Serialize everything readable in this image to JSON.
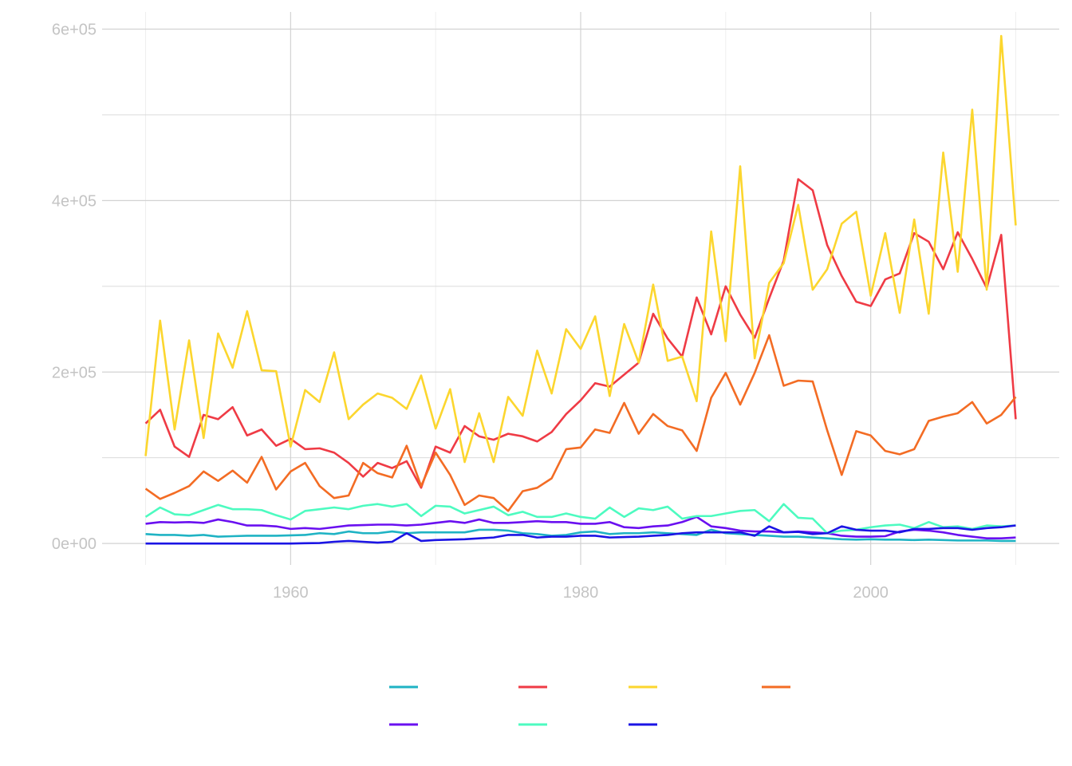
{
  "chart_data": {
    "type": "line",
    "title": "",
    "xlabel": "",
    "ylabel": "",
    "xlim": [
      1947,
      2013
    ],
    "ylim": [
      -25000,
      620000
    ],
    "grid": true,
    "legend_position": "bottom",
    "x": [
      1950,
      1951,
      1952,
      1953,
      1954,
      1955,
      1956,
      1957,
      1958,
      1959,
      1960,
      1961,
      1962,
      1963,
      1964,
      1965,
      1966,
      1967,
      1968,
      1969,
      1970,
      1971,
      1972,
      1973,
      1974,
      1975,
      1976,
      1977,
      1978,
      1979,
      1980,
      1981,
      1982,
      1983,
      1984,
      1985,
      1986,
      1987,
      1988,
      1989,
      1990,
      1991,
      1992,
      1993,
      1994,
      1995,
      1996,
      1997,
      1998,
      1999,
      2000,
      2001,
      2002,
      2003,
      2004,
      2005,
      2006,
      2007,
      2008,
      2009,
      2010
    ],
    "x_ticks": [
      {
        "value": 1960,
        "label": "1960"
      },
      {
        "value": 1980,
        "label": "1980"
      },
      {
        "value": 2000,
        "label": "2000"
      }
    ],
    "x_minor_ticks": [
      1950,
      1970,
      1990,
      2010
    ],
    "y_ticks": [
      {
        "value": 0,
        "label": "0e+00"
      },
      {
        "value": 200000,
        "label": "2e+05"
      },
      {
        "value": 400000,
        "label": "4e+05"
      },
      {
        "value": 600000,
        "label": "6e+05"
      }
    ],
    "y_minor_ticks": [
      100000,
      300000,
      500000
    ],
    "series": [
      {
        "color": "#1fb3c4",
        "values": [
          11000,
          10000,
          10000,
          9000,
          10000,
          8000,
          8500,
          9000,
          9000,
          9000,
          9500,
          10000,
          12000,
          11000,
          14000,
          12000,
          12000,
          14000,
          12000,
          13000,
          13000,
          13000,
          13000,
          16000,
          16000,
          15000,
          12000,
          11000,
          9000,
          10000,
          13000,
          14000,
          11000,
          12000,
          12000,
          13000,
          12000,
          11000,
          10000,
          16000,
          12000,
          11000,
          10000,
          9000,
          8000,
          8000,
          7000,
          6000,
          5000,
          4500,
          5000,
          4500,
          4500,
          4000,
          4500,
          4000,
          3500,
          3500,
          3500,
          3000,
          3000
        ]
      },
      {
        "color": "#ef3b45",
        "values": [
          140000,
          156000,
          113000,
          101000,
          150000,
          145000,
          159000,
          126000,
          133000,
          114000,
          122000,
          110000,
          111000,
          106000,
          94000,
          78000,
          94000,
          88000,
          96000,
          65000,
          113000,
          106000,
          137000,
          125000,
          121000,
          128000,
          125000,
          119000,
          130000,
          151000,
          167000,
          187000,
          183000,
          197000,
          211000,
          268000,
          239000,
          218000,
          287000,
          244000,
          300000,
          267000,
          240000,
          286000,
          330000,
          425000,
          412000,
          348000,
          312000,
          282000,
          277000,
          308000,
          315000,
          362000,
          352000,
          320000,
          363000,
          332000,
          298000,
          360000,
          145000
        ]
      },
      {
        "color": "#fcd62e",
        "values": [
          102000,
          260000,
          133000,
          237000,
          123000,
          245000,
          205000,
          271000,
          202000,
          201000,
          113000,
          179000,
          165000,
          223000,
          145000,
          162000,
          175000,
          170000,
          157000,
          196000,
          134000,
          180000,
          95000,
          152000,
          95000,
          171000,
          149000,
          225000,
          175000,
          250000,
          227000,
          265000,
          172000,
          256000,
          211000,
          302000,
          213000,
          218000,
          166000,
          364000,
          236000,
          440000,
          216000,
          304000,
          327000,
          395000,
          296000,
          320000,
          373000,
          387000,
          289000,
          362000,
          269000,
          378000,
          268000,
          456000,
          317000,
          506000,
          296000,
          592000,
          371000
        ]
      },
      {
        "color": "#f36c24",
        "values": [
          64000,
          52000,
          59000,
          67000,
          84000,
          73000,
          85000,
          71000,
          101000,
          63000,
          84000,
          94000,
          67000,
          53000,
          56000,
          94000,
          82000,
          77000,
          114000,
          67000,
          106000,
          80000,
          45000,
          56000,
          53000,
          38000,
          61000,
          65000,
          76000,
          110000,
          112000,
          133000,
          129000,
          164000,
          128000,
          151000,
          137000,
          132000,
          108000,
          170000,
          199000,
          162000,
          199000,
          243000,
          184000,
          190000,
          189000,
          132000,
          80000,
          131000,
          126000,
          108000,
          104000,
          110000,
          143000,
          148000,
          152000,
          165000,
          140000,
          150000,
          171000
        ]
      },
      {
        "color": "#6a10f0",
        "values": [
          23000,
          25000,
          24500,
          25000,
          24000,
          28000,
          25000,
          21000,
          21000,
          20000,
          17000,
          18000,
          17000,
          19000,
          21000,
          21500,
          22000,
          22000,
          21000,
          22000,
          24000,
          26000,
          24000,
          28000,
          24000,
          24000,
          25000,
          26000,
          25000,
          25000,
          23000,
          23000,
          25000,
          19000,
          18000,
          20000,
          21000,
          25000,
          31000,
          20000,
          18000,
          15000,
          14000,
          14000,
          13000,
          14000,
          13000,
          12000,
          9000,
          8000,
          8000,
          8500,
          14000,
          16000,
          15000,
          13000,
          10000,
          8000,
          6000,
          6000,
          7000
        ]
      },
      {
        "color": "#4dfbc0",
        "values": [
          31000,
          42000,
          34000,
          33000,
          39000,
          45000,
          40000,
          40000,
          39000,
          33000,
          28000,
          38000,
          40000,
          42000,
          40000,
          44000,
          46000,
          43000,
          46000,
          32000,
          44000,
          43000,
          35000,
          39000,
          43000,
          33000,
          37000,
          31000,
          31000,
          35000,
          31000,
          29000,
          42000,
          31000,
          41000,
          39000,
          43000,
          29000,
          32000,
          32000,
          35000,
          38000,
          39000,
          26000,
          46000,
          30000,
          29000,
          12000,
          15000,
          16000,
          19000,
          21000,
          22000,
          18000,
          25000,
          19000,
          20000,
          17000,
          21000,
          20000,
          21000
        ]
      },
      {
        "color": "#1b14e4",
        "values": [
          0,
          0,
          0,
          0,
          0,
          0,
          0,
          0,
          0,
          0,
          0,
          300,
          500,
          2000,
          3000,
          2000,
          1000,
          2000,
          12000,
          3000,
          4000,
          4500,
          5000,
          6000,
          7000,
          10000,
          10000,
          7000,
          8000,
          8000,
          9000,
          9000,
          7000,
          7500,
          8000,
          9000,
          10000,
          12000,
          13000,
          13000,
          13000,
          13000,
          9000,
          20000,
          13000,
          13500,
          11000,
          12000,
          20000,
          16000,
          15000,
          15000,
          13000,
          17000,
          17000,
          18000,
          18000,
          16000,
          18000,
          19000,
          21000
        ]
      }
    ]
  }
}
